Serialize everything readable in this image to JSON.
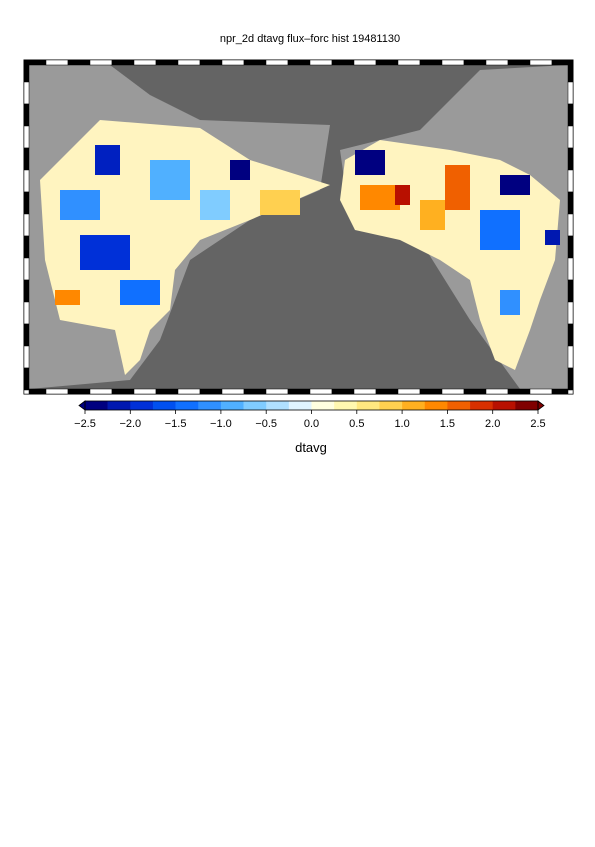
{
  "title": "npr_2d dtavg flux–forc hist 19481130",
  "colorbar": {
    "label": "dtavg",
    "lim": [
      -2.5,
      2.5
    ],
    "ticks": [
      {
        "value": -2.5,
        "label": "−2.5"
      },
      {
        "value": -2.0,
        "label": "−2.0"
      },
      {
        "value": -1.5,
        "label": "−1.5"
      },
      {
        "value": -1.0,
        "label": "−1.0"
      },
      {
        "value": -0.5,
        "label": "−0.5"
      },
      {
        "value": 0.0,
        "label": "0.0"
      },
      {
        "value": 0.5,
        "label": "0.5"
      },
      {
        "value": 1.0,
        "label": "1.0"
      },
      {
        "value": 1.5,
        "label": "1.5"
      },
      {
        "value": 2.0,
        "label": "2.0"
      },
      {
        "value": 2.5,
        "label": "2.5"
      }
    ],
    "colors": [
      "#000080",
      "#0018b0",
      "#0030d8",
      "#0050f0",
      "#1070ff",
      "#3090ff",
      "#50b0ff",
      "#80ccff",
      "#b0e0ff",
      "#e0f4ff",
      "#ffffe0",
      "#fff8b0",
      "#ffe880",
      "#ffd050",
      "#ffb020",
      "#ff8800",
      "#f06000",
      "#d83000",
      "#b81000",
      "#800000"
    ]
  }
}
